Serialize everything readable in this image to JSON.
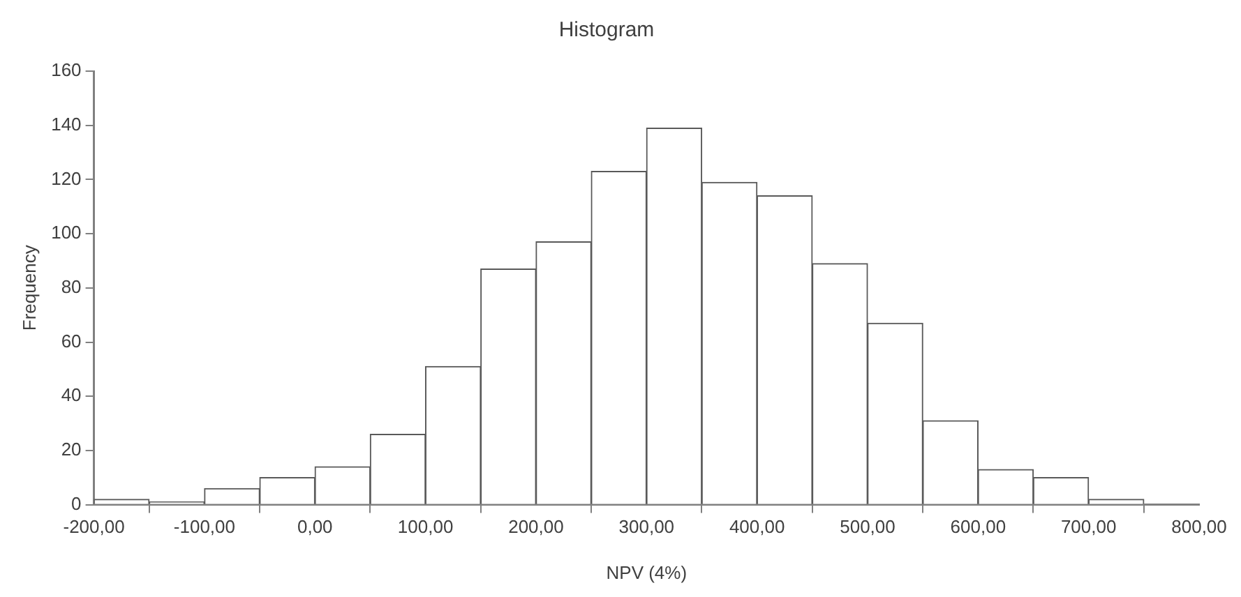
{
  "chart_data": {
    "type": "histogram",
    "title": "Histogram",
    "xlabel": "NPV (4%)",
    "ylabel": "Frequency",
    "bins": [
      -200,
      -150,
      -100,
      -50,
      0,
      50,
      100,
      150,
      200,
      250,
      300,
      350,
      400,
      450,
      500,
      550,
      600,
      650,
      700,
      750,
      800
    ],
    "values": [
      2,
      1,
      6,
      10,
      14,
      26,
      51,
      87,
      97,
      123,
      139,
      119,
      114,
      89,
      67,
      31,
      13,
      10,
      2,
      0
    ],
    "color": "#ffffff",
    "xlim": [
      -200,
      800
    ],
    "xticks": [
      {
        "value": -200,
        "label": "-200,00"
      },
      {
        "value": -100,
        "label": "-100,00"
      },
      {
        "value": 0,
        "label": "0,00"
      },
      {
        "value": 100,
        "label": "100,00"
      },
      {
        "value": 200,
        "label": "200,00"
      },
      {
        "value": 300,
        "label": "300,00"
      },
      {
        "value": 400,
        "label": "400,00"
      },
      {
        "value": 500,
        "label": "500,00"
      },
      {
        "value": 600,
        "label": "600,00"
      },
      {
        "value": 700,
        "label": "700,00"
      },
      {
        "value": 800,
        "label": "800,00"
      }
    ],
    "ylim": [
      0,
      160
    ],
    "yticks": [
      0,
      20,
      40,
      60,
      80,
      100,
      120,
      140,
      160
    ],
    "grid": false,
    "legend": false
  }
}
